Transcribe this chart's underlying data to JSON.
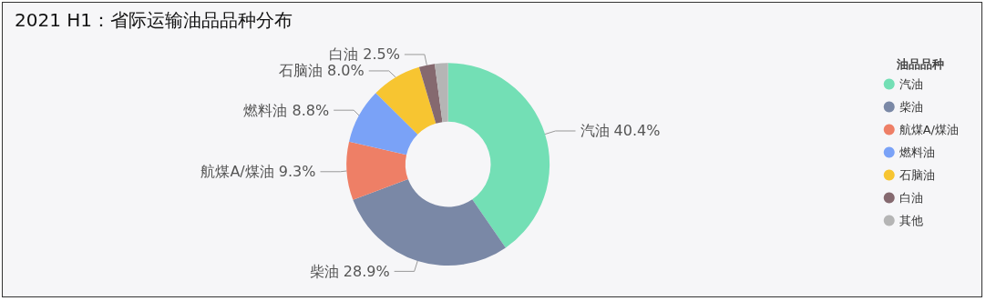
{
  "chart_data": {
    "type": "donut",
    "title": "2021 H1：省际运输油品品种分布",
    "legend_title": "油品品种",
    "legend": "right",
    "categories": [
      "汽油",
      "柴油",
      "航煤A/煤油",
      "燃料油",
      "石脑油",
      "白油",
      "其他"
    ],
    "values": [
      40.4,
      28.9,
      9.3,
      8.8,
      8.0,
      2.5,
      2.1
    ],
    "value_labels": [
      "40.4%",
      "28.9%",
      "9.3%",
      "8.8%",
      "8.0%",
      "2.5%",
      null
    ],
    "colors": [
      "#73dfb5",
      "#7a88a6",
      "#ee7f66",
      "#7aa2f7",
      "#f7c531",
      "#85696f",
      "#b5b5b5"
    ]
  }
}
